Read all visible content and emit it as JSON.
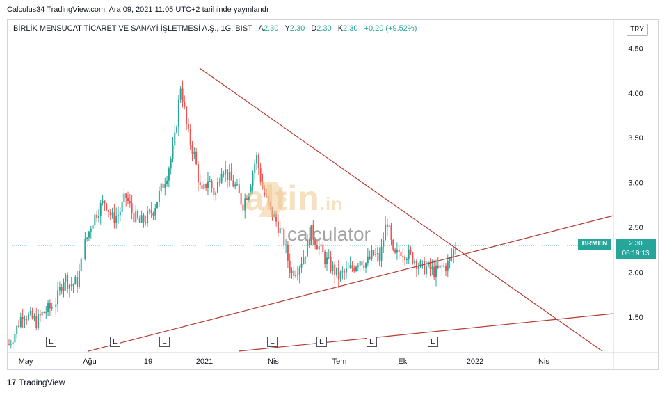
{
  "header": {
    "published_by": "Calculus34 TradingView.com, Ara 09, 2021 11:05 UTC+2 tarihinde yayınlandı"
  },
  "legend": {
    "symbol_title": "BİRLİK MENSUCAT TİCARET VE SANAYİ İŞLETMESİ A.Ş., 1G, BIST",
    "open_label": "A",
    "open_value": "2.30",
    "high_label": "Y",
    "high_value": "2.30",
    "low_label": "D",
    "low_value": "2.30",
    "close_label": "K",
    "close_value": "2.30",
    "change": "+0.20 (+9.52%)"
  },
  "currency": "TRY",
  "price_marker": {
    "ticker": "BRMEN",
    "price": "2.30",
    "countdown": "06:19:13"
  },
  "earnings_label": "E",
  "watermark": {
    "brand": "altin",
    "suffix": ".in",
    "sub": "calculator"
  },
  "footer": {
    "brand": "TradingView",
    "logo_mark": "17"
  },
  "colors": {
    "up": "#26a69a",
    "down": "#ef5350",
    "trendline": "#b53a2f",
    "grid": "#e0e3eb"
  },
  "chart_data": {
    "type": "candlestick",
    "y_ticks": [
      "4.50",
      "4.00",
      "3.50",
      "3.00",
      "2.50",
      "2.00",
      "1.50"
    ],
    "x_ticks": [
      "May",
      "Ağu",
      "19",
      "2021",
      "Nis",
      "Tem",
      "Eki",
      "2022",
      "Nis"
    ],
    "ylim": [
      1.12,
      4.65
    ],
    "last_price": 2.3,
    "approx_closes": [
      1.2,
      1.35,
      1.55,
      1.5,
      1.45,
      1.55,
      1.6,
      1.7,
      1.95,
      1.85,
      1.9,
      2.3,
      2.55,
      2.7,
      2.8,
      2.6,
      2.65,
      2.85,
      2.65,
      2.55,
      2.6,
      2.7,
      2.9,
      3.1,
      3.4,
      4.1,
      3.55,
      3.3,
      2.85,
      3.05,
      2.85,
      3.2,
      3.05,
      2.95,
      2.75,
      2.95,
      3.3,
      2.9,
      2.7,
      2.55,
      2.35,
      2.0,
      2.05,
      2.2,
      2.45,
      2.3,
      2.15,
      2.05,
      1.95,
      2.0,
      2.05,
      2.15,
      2.1,
      2.2,
      2.15,
      2.6,
      2.15,
      2.25,
      2.2,
      2.15,
      2.05,
      2.05,
      2.0,
      2.05,
      2.1,
      2.3
    ],
    "earnings_count": 7
  }
}
